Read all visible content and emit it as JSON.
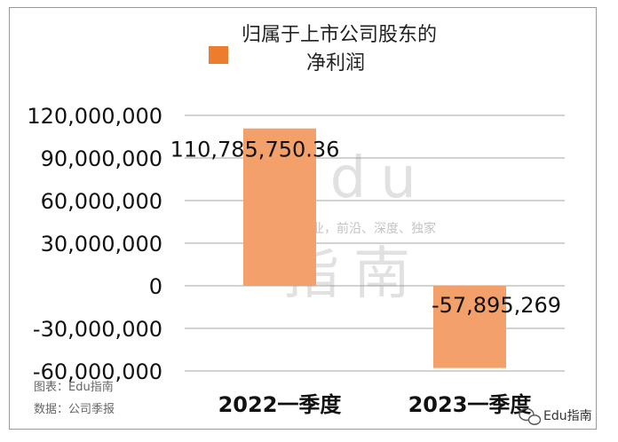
{
  "chart_data": {
    "type": "bar",
    "title": "",
    "categories": [
      "2022一季度",
      "2023一季度"
    ],
    "series": [
      {
        "name": "归属于上市公司股东的净利润",
        "values": [
          110785750.36,
          -57895269
        ],
        "data_labels": [
          "110,785,750.36",
          "-57,895,269"
        ],
        "color": "#f4a06a"
      }
    ],
    "legend_lines": [
      "归属于上市公司股东的",
      "净利润"
    ],
    "legend_position": "top",
    "ylim": [
      -60000000,
      120000000
    ],
    "yticks": [
      120000000,
      90000000,
      60000000,
      30000000,
      0,
      -30000000,
      -60000000
    ],
    "ytick_labels": [
      "120,000,000",
      "90,000,000",
      "60,000,000",
      "30,000,000",
      "0",
      "-30,000,000",
      "-60,000,000"
    ],
    "grid": true,
    "xlabel": "",
    "ylabel": ""
  },
  "notes": [
    "图表：Edu指南",
    "数据：公司季报"
  ],
  "watermark": {
    "big_top": "Edu",
    "slogan": "教育行业，前沿、深度、独家",
    "big_bottom": "指南"
  },
  "corner_brand": "Edu指南",
  "colors": {
    "bar": "#f4a06a",
    "legend": "#ee7c2e",
    "grid": "#b8b8b8"
  }
}
